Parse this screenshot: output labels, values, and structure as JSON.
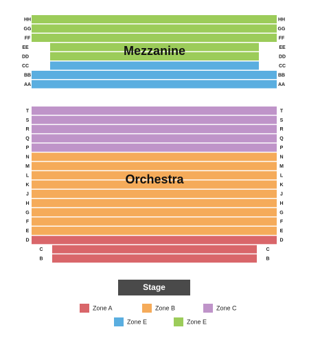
{
  "mezzanine": {
    "title": "Mezzanine",
    "rows": [
      {
        "label": "HH",
        "zone": 4,
        "full_width": true
      },
      {
        "label": "GG",
        "zone": 4,
        "full_width": true
      },
      {
        "label": "FF",
        "zone": 4,
        "full_width": true
      },
      {
        "label": "EE",
        "zone": 4,
        "full_width": false
      },
      {
        "label": "DD",
        "zone": 4,
        "full_width": false
      },
      {
        "label": "CC",
        "zone": 3,
        "full_width": false
      },
      {
        "label": "BB",
        "zone": 3,
        "full_width": true
      },
      {
        "label": "AA",
        "zone": 3,
        "full_width": true
      }
    ]
  },
  "orchestra": {
    "title": "Orchestra",
    "rows": [
      {
        "label": "T",
        "zone": 2,
        "full_width": true
      },
      {
        "label": "S",
        "zone": 2,
        "full_width": true
      },
      {
        "label": "R",
        "zone": 2,
        "full_width": true
      },
      {
        "label": "Q",
        "zone": 2,
        "full_width": true
      },
      {
        "label": "P",
        "zone": 2,
        "full_width": true
      },
      {
        "label": "N",
        "zone": 1,
        "full_width": true
      },
      {
        "label": "M",
        "zone": 1,
        "full_width": true
      },
      {
        "label": "L",
        "zone": 1,
        "full_width": true
      },
      {
        "label": "K",
        "zone": 1,
        "full_width": true
      },
      {
        "label": "J",
        "zone": 1,
        "full_width": true
      },
      {
        "label": "H",
        "zone": 1,
        "full_width": true
      },
      {
        "label": "G",
        "zone": 1,
        "full_width": true
      },
      {
        "label": "F",
        "zone": 1,
        "full_width": true
      },
      {
        "label": "E",
        "zone": 1,
        "full_width": true
      },
      {
        "label": "D",
        "zone": 0,
        "full_width": true
      },
      {
        "label": "C",
        "zone": 0,
        "full_width": false
      },
      {
        "label": "B",
        "zone": 0,
        "full_width": false
      }
    ]
  },
  "stage": "Stage",
  "legend": [
    {
      "label": "Zone A",
      "color": "#d9666a"
    },
    {
      "label": "Zone B",
      "color": "#f5ab5a"
    },
    {
      "label": "Zone C",
      "color": "#bf94c9"
    },
    {
      "label": "Zone E",
      "color": "#5aaee0"
    },
    {
      "label": "Zone E",
      "color": "#9ccc5a"
    }
  ]
}
